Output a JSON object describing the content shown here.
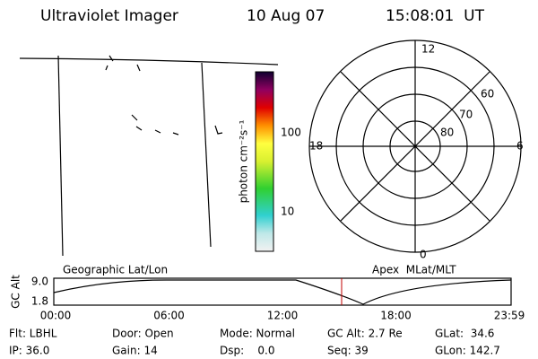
{
  "header": {
    "title": "Ultraviolet Imager",
    "date": "10 Aug 07",
    "time": "15:08:01  UT"
  },
  "colorbar": {
    "label": "photon cm⁻²s⁻¹",
    "ticks": [
      "100",
      "10"
    ]
  },
  "polar": {
    "mlt_labels": [
      "12",
      "18",
      "6",
      "0"
    ],
    "lat_labels": [
      "60",
      "70",
      "80"
    ]
  },
  "altitude": {
    "left_label": "Geographic Lat/Lon",
    "right_label": "Apex  MLat/MLT",
    "y_label": "GC Alt",
    "y_ticks": [
      "9.0",
      "1.8"
    ],
    "x_ticks": [
      "00:00",
      "06:00",
      "12:00",
      "18:00",
      "23:59"
    ]
  },
  "info": [
    [
      "Flt: LBHL",
      "Door: Open",
      "Mode: Normal",
      "GC Alt: 2.7 Re",
      "GLat:  34.6"
    ],
    [
      "IP: 36.0",
      "Gain: 14",
      "Dsp:    0.0",
      "Seq: 39",
      "GLon: 142.7"
    ]
  ]
}
